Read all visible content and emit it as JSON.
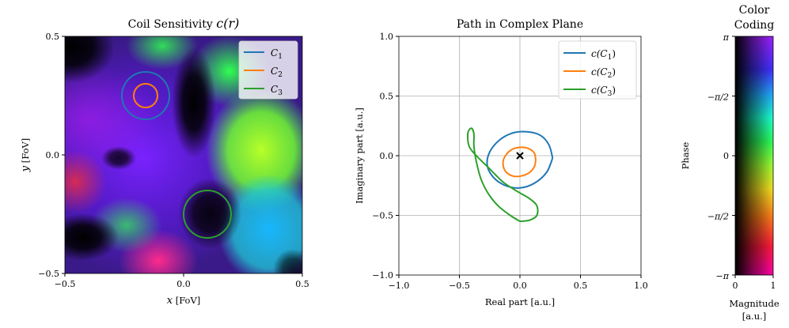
{
  "chart_data": [
    {
      "type": "heatmap",
      "title_prefix": "Coil Sensitivity ",
      "title_math": "c(r)",
      "xlabel_var": "x",
      "xlabel_unit": "[FoV]",
      "ylabel_var": "y",
      "ylabel_unit": "[FoV]",
      "xlim": [
        -0.5,
        0.5
      ],
      "ylim": [
        -0.5,
        0.5
      ],
      "xticks": [
        "−0.5",
        "0.0",
        "0.5"
      ],
      "yticks": [
        "0.5",
        "0.0",
        "−0.5"
      ],
      "legend_position": "top-right",
      "circles": [
        {
          "name": "C1",
          "label_base": "C",
          "label_sub": "1",
          "color": "#1f77b4",
          "center": [
            -0.16,
            0.25
          ],
          "radius": 0.1
        },
        {
          "name": "C2",
          "label_base": "C",
          "label_sub": "2",
          "color": "#ff7f0e",
          "center": [
            -0.16,
            0.25
          ],
          "radius": 0.05
        },
        {
          "name": "C3",
          "label_base": "C",
          "label_sub": "3",
          "color": "#2ca02c",
          "center": [
            0.1,
            -0.25
          ],
          "radius": 0.1
        }
      ]
    },
    {
      "type": "line",
      "title": "Path in Complex Plane",
      "xlabel": "Real part [a.u.]",
      "ylabel": "Imaginary part [a.u.]",
      "xlim": [
        -1.0,
        1.0
      ],
      "ylim": [
        -1.0,
        1.0
      ],
      "xticks": [
        "−1.0",
        "−0.5",
        "0.0",
        "0.5",
        "1.0"
      ],
      "yticks": [
        "1.0",
        "0.5",
        "0.0",
        "−0.5",
        "−1.0"
      ],
      "grid": true,
      "legend_position": "top-right",
      "marker": {
        "symbol": "x",
        "point": [
          0.0,
          0.0
        ]
      },
      "series": [
        {
          "name": "c(C1)",
          "label_pre": "c(",
          "label_base": "C",
          "label_sub": "1",
          "label_post": ")",
          "color": "#1f77b4",
          "points": [
            [
              0.27,
              -0.02
            ],
            [
              0.24,
              0.09
            ],
            [
              0.17,
              0.17
            ],
            [
              0.06,
              0.2
            ],
            [
              -0.06,
              0.19
            ],
            [
              -0.17,
              0.13
            ],
            [
              -0.25,
              0.03
            ],
            [
              -0.27,
              -0.08
            ],
            [
              -0.22,
              -0.18
            ],
            [
              -0.12,
              -0.25
            ],
            [
              0.0,
              -0.27
            ],
            [
              0.12,
              -0.23
            ],
            [
              0.22,
              -0.14
            ],
            [
              0.27,
              -0.02
            ]
          ]
        },
        {
          "name": "c(C2)",
          "label_pre": "c(",
          "label_base": "C",
          "label_sub": "2",
          "label_post": ")",
          "color": "#ff7f0e",
          "points": [
            [
              0.13,
              -0.04
            ],
            [
              0.12,
              0.02
            ],
            [
              0.07,
              0.06
            ],
            [
              0.0,
              0.07
            ],
            [
              -0.07,
              0.05
            ],
            [
              -0.12,
              0.0
            ],
            [
              -0.14,
              -0.06
            ],
            [
              -0.12,
              -0.13
            ],
            [
              -0.06,
              -0.17
            ],
            [
              0.01,
              -0.17
            ],
            [
              0.08,
              -0.14
            ],
            [
              0.12,
              -0.09
            ],
            [
              0.13,
              -0.04
            ]
          ]
        },
        {
          "name": "c(C3)",
          "label_pre": "c(",
          "label_base": "C",
          "label_sub": "3",
          "label_post": ")",
          "color": "#2ca02c",
          "points": [
            [
              0.0,
              -0.55
            ],
            [
              -0.08,
              -0.5
            ],
            [
              -0.18,
              -0.42
            ],
            [
              -0.26,
              -0.32
            ],
            [
              -0.32,
              -0.2
            ],
            [
              -0.36,
              -0.05
            ],
            [
              -0.38,
              0.08
            ],
            [
              -0.38,
              0.18
            ],
            [
              -0.4,
              0.23
            ],
            [
              -0.43,
              0.19
            ],
            [
              -0.42,
              0.08
            ],
            [
              -0.36,
              0.0
            ],
            [
              -0.26,
              -0.1
            ],
            [
              -0.14,
              -0.22
            ],
            [
              -0.02,
              -0.3
            ],
            [
              0.08,
              -0.36
            ],
            [
              0.14,
              -0.42
            ],
            [
              0.14,
              -0.5
            ],
            [
              0.08,
              -0.54
            ],
            [
              0.0,
              -0.55
            ]
          ]
        }
      ]
    },
    {
      "type": "heatmap",
      "title_line1": "Color",
      "title_line2": "Coding",
      "xlabel_line1": "Magnitude",
      "xlabel_line2": "[a.u.]",
      "ylabel": "Phase",
      "xticks": [
        "0",
        "1"
      ],
      "yticks": [
        "π",
        "−π/2",
        "0",
        "−π/2",
        "−π"
      ]
    }
  ]
}
